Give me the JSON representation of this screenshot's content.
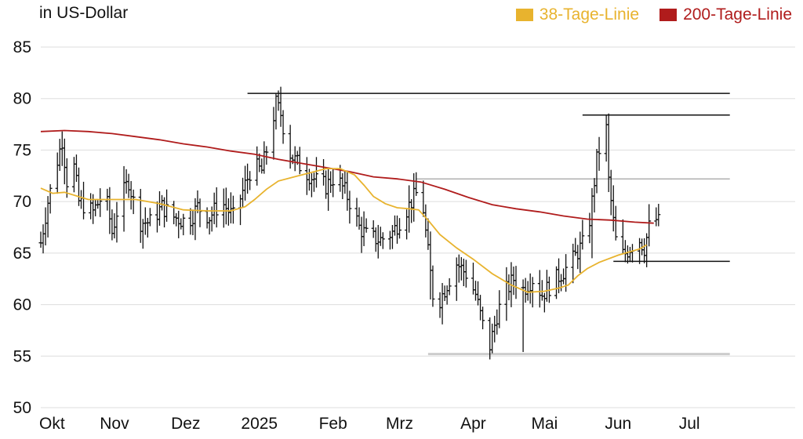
{
  "chart_data": {
    "type": "ohlc",
    "unit_label": "in US-Dollar",
    "ylim": [
      50,
      85
    ],
    "yticks": [
      50,
      55,
      60,
      65,
      70,
      75,
      80,
      85
    ],
    "grid": true,
    "legend_placement": "top-right",
    "colors": {
      "price": "#111111",
      "ma38": "#e8b32e",
      "ma200": "#b01c1c",
      "grid": "#dddddd"
    },
    "months": [
      {
        "label": "Okt",
        "day": 0
      },
      {
        "label": "Nov",
        "day": 31
      },
      {
        "label": "Dez",
        "day": 61
      },
      {
        "label": "2025",
        "day": 92
      },
      {
        "label": "Feb",
        "day": 123
      },
      {
        "label": "Mrz",
        "day": 151
      },
      {
        "label": "Apr",
        "day": 182
      },
      {
        "label": "Mai",
        "day": 212
      },
      {
        "label": "Jun",
        "day": 243
      },
      {
        "label": "Jul",
        "day": 273
      }
    ],
    "price_anchors": [
      [
        0,
        66
      ],
      [
        3,
        70
      ],
      [
        7,
        74
      ],
      [
        9,
        76
      ],
      [
        11,
        72
      ],
      [
        13,
        75
      ],
      [
        16,
        70
      ],
      [
        22,
        69
      ],
      [
        27,
        71
      ],
      [
        30,
        67
      ],
      [
        33,
        70
      ],
      [
        37,
        72
      ],
      [
        41,
        68
      ],
      [
        46,
        68
      ],
      [
        51,
        69.5
      ],
      [
        56,
        68.5
      ],
      [
        62,
        68
      ],
      [
        66,
        69.5
      ],
      [
        71,
        68.5
      ],
      [
        76,
        70
      ],
      [
        81,
        68.5
      ],
      [
        85,
        71
      ],
      [
        89,
        73.5
      ],
      [
        93,
        73
      ],
      [
        96,
        76
      ],
      [
        99,
        79.5
      ],
      [
        101,
        78.5
      ],
      [
        104,
        75
      ],
      [
        107,
        74
      ],
      [
        111,
        73
      ],
      [
        116,
        72
      ],
      [
        120,
        71.5
      ],
      [
        124,
        72.5
      ],
      [
        128,
        71
      ],
      [
        131,
        69.5
      ],
      [
        134,
        67.5
      ],
      [
        138,
        66.5
      ],
      [
        143,
        66.3
      ],
      [
        148,
        67
      ],
      [
        152,
        68.5
      ],
      [
        156,
        70
      ],
      [
        160,
        71.5
      ],
      [
        162,
        67
      ],
      [
        164,
        63
      ],
      [
        166,
        59
      ],
      [
        168,
        60.5
      ],
      [
        171,
        62
      ],
      [
        175,
        64
      ],
      [
        179,
        63
      ],
      [
        183,
        61
      ],
      [
        186,
        58
      ],
      [
        189,
        56
      ],
      [
        192,
        59
      ],
      [
        195,
        61
      ],
      [
        199,
        62.5
      ],
      [
        203,
        61.5
      ],
      [
        207,
        62.5
      ],
      [
        211,
        61
      ],
      [
        215,
        62
      ],
      [
        219,
        63
      ],
      [
        223,
        64
      ],
      [
        227,
        65.5
      ],
      [
        230,
        66.5
      ],
      [
        232,
        70
      ],
      [
        234,
        74
      ],
      [
        236,
        76
      ],
      [
        238,
        77
      ],
      [
        239,
        72
      ],
      [
        241,
        68
      ],
      [
        243,
        64.5
      ],
      [
        246,
        65
      ],
      [
        249,
        65.8
      ],
      [
        252,
        66.3
      ],
      [
        254,
        65.5
      ],
      [
        256,
        67.5
      ],
      [
        258,
        68.5
      ],
      [
        260,
        68
      ]
    ],
    "ma38": [
      [
        0,
        71.3
      ],
      [
        5,
        70.8
      ],
      [
        10,
        70.9
      ],
      [
        20,
        70.2
      ],
      [
        30,
        70.2
      ],
      [
        40,
        70.2
      ],
      [
        50,
        69.8
      ],
      [
        60,
        69.2
      ],
      [
        70,
        69.1
      ],
      [
        80,
        69.1
      ],
      [
        86,
        69.5
      ],
      [
        90,
        70.2
      ],
      [
        95,
        71.2
      ],
      [
        100,
        72
      ],
      [
        110,
        72.6
      ],
      [
        120,
        73.2
      ],
      [
        126,
        73.2
      ],
      [
        132,
        72.6
      ],
      [
        136,
        71.6
      ],
      [
        140,
        70.5
      ],
      [
        145,
        69.8
      ],
      [
        150,
        69.4
      ],
      [
        155,
        69.3
      ],
      [
        159,
        69.2
      ],
      [
        163,
        68.2
      ],
      [
        168,
        66.8
      ],
      [
        175,
        65.5
      ],
      [
        182,
        64.4
      ],
      [
        190,
        63
      ],
      [
        198,
        61.9
      ],
      [
        205,
        61.2
      ],
      [
        212,
        61.3
      ],
      [
        218,
        61.6
      ],
      [
        222,
        61.9
      ],
      [
        226,
        62.8
      ],
      [
        230,
        63.5
      ],
      [
        235,
        64.1
      ],
      [
        243,
        64.8
      ],
      [
        252,
        65.4
      ],
      [
        255,
        65.8
      ]
    ],
    "ma200": [
      [
        0,
        76.8
      ],
      [
        10,
        76.9
      ],
      [
        20,
        76.8
      ],
      [
        30,
        76.6
      ],
      [
        40,
        76.3
      ],
      [
        50,
        76
      ],
      [
        60,
        75.6
      ],
      [
        70,
        75.3
      ],
      [
        80,
        74.9
      ],
      [
        90,
        74.6
      ],
      [
        100,
        74.1
      ],
      [
        110,
        73.7
      ],
      [
        120,
        73.3
      ],
      [
        130,
        72.9
      ],
      [
        140,
        72.4
      ],
      [
        150,
        72.2
      ],
      [
        160,
        71.9
      ],
      [
        170,
        71.2
      ],
      [
        180,
        70.4
      ],
      [
        190,
        69.7
      ],
      [
        200,
        69.3
      ],
      [
        210,
        69
      ],
      [
        220,
        68.6
      ],
      [
        230,
        68.3
      ],
      [
        240,
        68.2
      ],
      [
        250,
        68
      ],
      [
        258,
        67.9
      ]
    ],
    "levels": [
      {
        "y": 80.5,
        "from": 87,
        "to": 290,
        "color": "#111111"
      },
      {
        "y": 78.4,
        "from": 228,
        "to": 290,
        "color": "#111111"
      },
      {
        "y": 72.2,
        "from": 158,
        "to": 290,
        "color": "#b0b0b0"
      },
      {
        "y": 64.2,
        "from": 241,
        "to": 290,
        "color": "#111111"
      },
      {
        "y": 55.2,
        "from": 163,
        "to": 290,
        "color": "#cccccc"
      }
    ]
  },
  "legend": [
    {
      "label": "38-Tage-Linie",
      "color": "#e8b32e"
    },
    {
      "label": "200-Tage-Linie",
      "color": "#b01c1c"
    }
  ]
}
